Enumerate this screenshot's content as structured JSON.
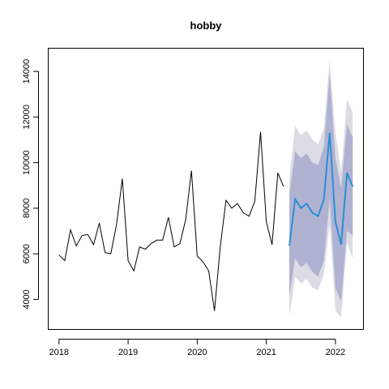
{
  "chart_data": {
    "type": "line",
    "title": "hobby",
    "xlabel": "",
    "ylabel": "",
    "xlim": [
      2017.85,
      2022.4
    ],
    "ylim": [
      2700,
      15000
    ],
    "x_ticks": [
      2018,
      2019,
      2020,
      2021,
      2022
    ],
    "x_tick_labels": [
      "2018",
      "2019",
      "2020",
      "2021",
      "2022"
    ],
    "y_ticks": [
      4000,
      6000,
      8000,
      10000,
      12000,
      14000
    ],
    "y_tick_labels": [
      "4000",
      "6000",
      "8000",
      "10000",
      "12000",
      "14000"
    ],
    "colors": {
      "history": "#000000",
      "forecast": "#2b8fd6",
      "band95": "#dcdce4",
      "band80": "#b0b2d2"
    },
    "history": {
      "x": [
        2018.0,
        2018.0833,
        2018.1667,
        2018.25,
        2018.3333,
        2018.4167,
        2018.5,
        2018.5833,
        2018.6667,
        2018.75,
        2018.8333,
        2018.9167,
        2019.0,
        2019.0833,
        2019.1667,
        2019.25,
        2019.3333,
        2019.4167,
        2019.5,
        2019.5833,
        2019.6667,
        2019.75,
        2019.8333,
        2019.9167,
        2020.0,
        2020.0833,
        2020.1667,
        2020.25,
        2020.3333,
        2020.4167,
        2020.5,
        2020.5833,
        2020.6667,
        2020.75,
        2020.8333,
        2020.9167,
        2021.0,
        2021.0833,
        2021.1667,
        2021.25
      ],
      "values": [
        5950,
        5700,
        7050,
        6350,
        6800,
        6850,
        6400,
        7350,
        6050,
        6000,
        7300,
        9300,
        5700,
        5250,
        6300,
        6200,
        6450,
        6600,
        6600,
        7600,
        6300,
        6450,
        7500,
        9650,
        5900,
        5650,
        5250,
        3500,
        6300,
        8350,
        8000,
        8200,
        7800,
        7650,
        8300,
        11350,
        7400,
        6400,
        9550,
        8950
      ]
    },
    "forecast": {
      "x": [
        2021.3333,
        2021.4167,
        2021.5,
        2021.5833,
        2021.6667,
        2021.75,
        2021.8333,
        2021.9167,
        2022.0,
        2022.0833,
        2022.1667,
        2022.25
      ],
      "mean": [
        6350,
        8400,
        8000,
        8200,
        7800,
        7650,
        8400,
        11300,
        7400,
        6400,
        9550,
        8950
      ],
      "lo80": [
        4100,
        5800,
        5400,
        5600,
        5200,
        5000,
        5700,
        8400,
        4500,
        3900,
        7000,
        6800
      ],
      "hi80": [
        8600,
        10500,
        10200,
        10400,
        10000,
        9900,
        10700,
        13900,
        10200,
        8900,
        11700,
        11100
      ],
      "lo95": [
        3200,
        5000,
        4700,
        4900,
        4500,
        4400,
        5100,
        7300,
        3500,
        3200,
        6500,
        5800
      ],
      "hi95": [
        9400,
        11600,
        11200,
        11400,
        11000,
        10800,
        11500,
        14500,
        11300,
        9600,
        12800,
        12200
      ]
    }
  }
}
